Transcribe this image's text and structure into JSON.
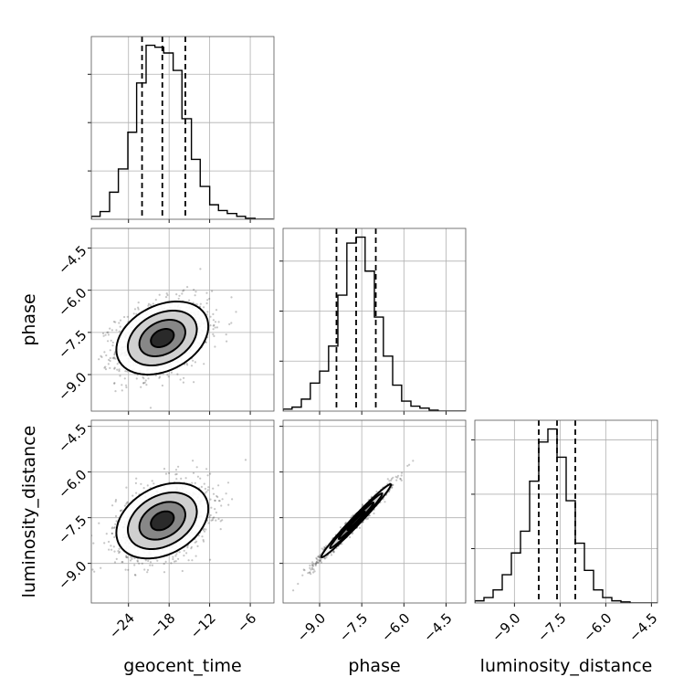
{
  "chart_data": {
    "type": "scatter",
    "kind": "corner-plot",
    "parameters": [
      {
        "name": "geocent_time",
        "label": "geocent_time",
        "range": [
          -29.5,
          -2.5
        ],
        "ticks": [
          -24,
          -18,
          -12,
          -6
        ],
        "tick_labels": [
          "−24",
          "−18",
          "−12",
          "−6"
        ],
        "quantiles": [
          -22.0,
          -19.0,
          -15.6
        ]
      },
      {
        "name": "phase",
        "label": "phase",
        "range": [
          -10.3,
          -3.8
        ],
        "ticks": [
          -9.0,
          -7.5,
          -6.0,
          -4.5
        ],
        "tick_labels": [
          "−9.0",
          "−7.5",
          "−6.0",
          "−4.5"
        ],
        "quantiles": [
          -8.4,
          -7.7,
          -7.0
        ]
      },
      {
        "name": "luminosity_distance",
        "label": "luminosity_distance",
        "range": [
          -10.3,
          -4.3
        ],
        "ticks": [
          -9.0,
          -7.5,
          -6.0,
          -4.5
        ],
        "tick_labels": [
          "−9.0",
          "−7.5",
          "−6.0",
          "−4.5"
        ],
        "quantiles": [
          -8.2,
          -7.6,
          -7.0
        ]
      }
    ],
    "histograms": [
      {
        "param": "geocent_time",
        "bin_edges": [
          -29.5,
          -28.2,
          -26.8,
          -25.5,
          -24.1,
          -22.8,
          -21.4,
          -20.1,
          -18.8,
          -17.4,
          -16.1,
          -14.7,
          -13.4,
          -12.0,
          -10.7,
          -9.4,
          -8.0,
          -6.7,
          -5.3,
          -4.0,
          -2.6
        ],
        "counts": [
          3,
          8,
          28,
          52,
          90,
          141,
          180,
          178,
          172,
          154,
          104,
          62,
          34,
          15,
          9,
          6,
          3,
          1,
          0,
          0
        ]
      },
      {
        "param": "phase",
        "bin_edges": [
          -10.3,
          -9.98,
          -9.65,
          -9.33,
          -9.0,
          -8.68,
          -8.35,
          -8.03,
          -7.7,
          -7.38,
          -7.05,
          -6.73,
          -6.4,
          -6.08,
          -5.75,
          -5.43,
          -5.1,
          -4.78,
          -4.45,
          -4.13,
          -3.8
        ],
        "counts": [
          2,
          4,
          12,
          28,
          40,
          65,
          116,
          168,
          174,
          140,
          94,
          55,
          26,
          10,
          5,
          3,
          1,
          0,
          0,
          0
        ]
      },
      {
        "param": "luminosity_distance",
        "bin_edges": [
          -10.3,
          -10.0,
          -9.7,
          -9.4,
          -9.1,
          -8.8,
          -8.5,
          -8.2,
          -7.9,
          -7.6,
          -7.3,
          -7.0,
          -6.7,
          -6.4,
          -6.1,
          -5.8,
          -5.5,
          -5.2,
          -4.9,
          -4.6,
          -4.3
        ],
        "counts": [
          2,
          5,
          12,
          26,
          46,
          66,
          112,
          148,
          160,
          134,
          94,
          55,
          30,
          12,
          5,
          2,
          1,
          0,
          0,
          0
        ]
      }
    ],
    "pairs": [
      {
        "x": "geocent_time",
        "y": "phase",
        "center": [
          -19.0,
          -7.7
        ],
        "sigma": [
          3.4,
          0.65
        ],
        "correlation": 0.32
      },
      {
        "x": "geocent_time",
        "y": "luminosity_distance",
        "center": [
          -19.0,
          -7.6
        ],
        "sigma": [
          3.4,
          0.62
        ],
        "correlation": 0.32
      },
      {
        "x": "phase",
        "y": "luminosity_distance",
        "center": [
          -7.7,
          -7.6
        ],
        "sigma": [
          0.62,
          0.6
        ],
        "correlation": 0.985
      }
    ],
    "contour_levels_sigma": [
      0.5,
      1.0,
      1.5,
      2.0
    ],
    "grid": true
  }
}
